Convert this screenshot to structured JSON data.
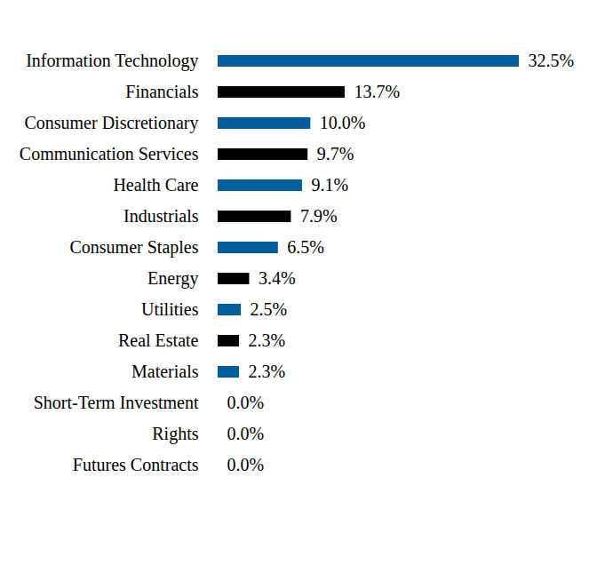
{
  "chart_data": {
    "type": "bar",
    "orientation": "horizontal",
    "categories": [
      "Information Technology",
      "Financials",
      "Consumer Discretionary",
      "Communication Services",
      "Health Care",
      "Industrials",
      "Consumer Staples",
      "Energy",
      "Utilities",
      "Real Estate",
      "Materials",
      "Short-Term Investment",
      "Rights",
      "Futures Contracts"
    ],
    "values": [
      32.5,
      13.7,
      10.0,
      9.7,
      9.1,
      7.9,
      6.5,
      3.4,
      2.5,
      2.3,
      2.3,
      0.0,
      0.0,
      0.0
    ],
    "value_labels": [
      "32.5%",
      "13.7%",
      "10.0%",
      "9.7%",
      "9.1%",
      "7.9%",
      "6.5%",
      "3.4%",
      "2.5%",
      "2.3%",
      "2.3%",
      "0.0%",
      "0.0%",
      "0.0%"
    ],
    "colors": [
      "#005e9c",
      "#000000",
      "#005e9c",
      "#000000",
      "#005e9c",
      "#000000",
      "#005e9c",
      "#000000",
      "#005e9c",
      "#000000",
      "#005e9c",
      "#000000",
      "#005e9c",
      "#000000"
    ],
    "xlim": [
      0,
      32.5
    ],
    "data_labels": true,
    "tick_labels": "y",
    "grid": false
  }
}
